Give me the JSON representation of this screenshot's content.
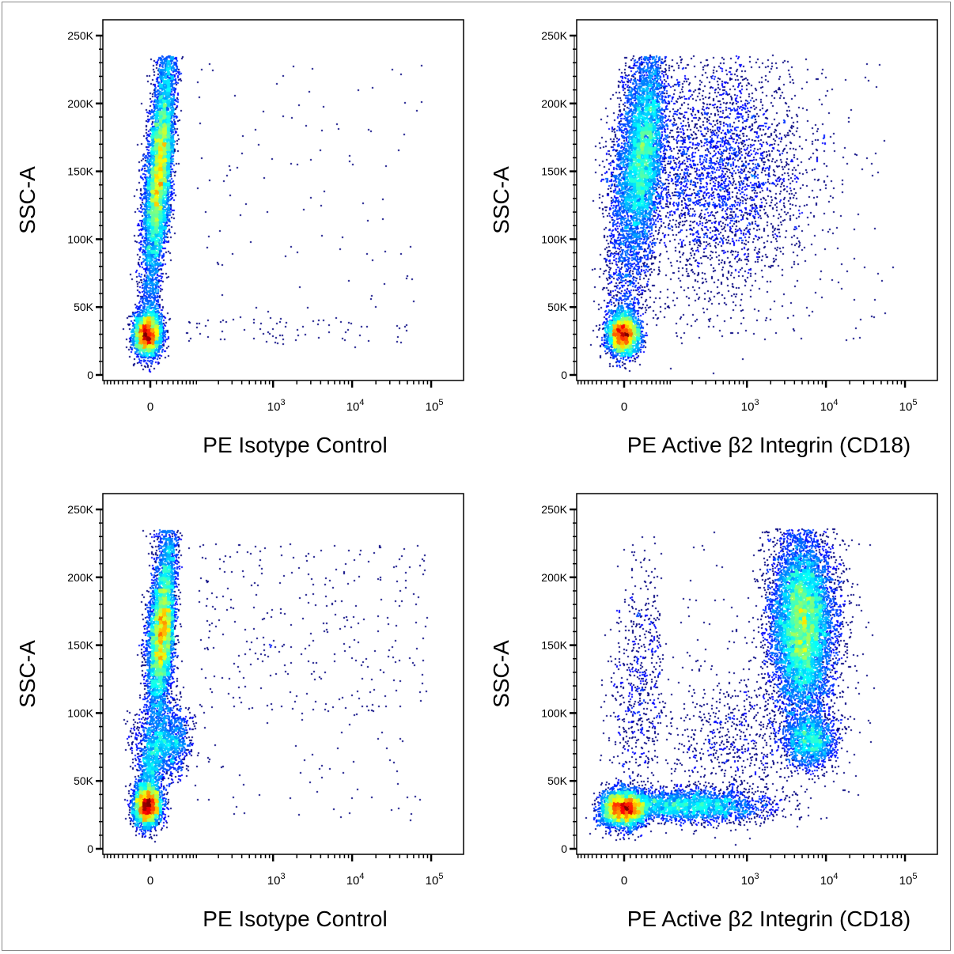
{
  "chart_data": [
    {
      "type": "scatter",
      "subtype": "flow-cytometry density dot plot",
      "xlabel": "PE Isotype Control",
      "ylabel": "SSC-A",
      "x_scale": "biexponential",
      "x_ticks": [
        "0",
        "10^3",
        "10^4",
        "10^5"
      ],
      "y_ticks": [
        "0",
        "50K",
        "100K",
        "150K",
        "200K",
        "250K"
      ],
      "ylim": [
        0,
        250000
      ],
      "color_scale": "density (blue-green-yellow-red)",
      "populations": [
        {
          "kind": "gauss",
          "x_mean": -5,
          "x_sd": 12,
          "y_mean": 30000,
          "y_sd": 8000,
          "n": 3000
        },
        {
          "kind": "column",
          "y_range": [
            40000,
            235000
          ],
          "y_peak": 150000,
          "x_mean_low": -5,
          "x_mean_high": 30,
          "x_sd": 11,
          "n": 7000
        },
        {
          "kind": "scatter",
          "x_range": [
            100,
            80000
          ],
          "y_range": [
            20000,
            230000
          ],
          "n": 110
        },
        {
          "kind": "scatter",
          "x_range": [
            60,
            50000
          ],
          "y_range": [
            22000,
            42000
          ],
          "n": 70
        }
      ]
    },
    {
      "type": "scatter",
      "subtype": "flow-cytometry density dot plot",
      "xlabel": "PE Active β2 Integrin (CD18)",
      "ylabel": "SSC-A",
      "x_scale": "biexponential",
      "x_ticks": [
        "0",
        "10^3",
        "10^4",
        "10^5"
      ],
      "y_ticks": [
        "0",
        "50K",
        "100K",
        "150K",
        "200K",
        "250K"
      ],
      "ylim": [
        0,
        250000
      ],
      "color_scale": "density (blue-green-yellow-red)",
      "populations": [
        {
          "kind": "gauss",
          "x_mean": -2,
          "x_sd": 14,
          "y_mean": 30000,
          "y_sd": 8000,
          "n": 3000
        },
        {
          "kind": "column",
          "y_range": [
            45000,
            235000
          ],
          "y_peak": 160000,
          "x_mean_low": 0,
          "x_mean_high": 45,
          "x_sd": 22,
          "n": 6000
        },
        {
          "kind": "logx",
          "x_log10_mean": 2.6,
          "x_log10_sd": 0.6,
          "y_mean": 150000,
          "y_sd": 45000,
          "n": 3500
        },
        {
          "kind": "scatter",
          "x_range": [
            100,
            60000
          ],
          "y_range": [
            25000,
            235000
          ],
          "n": 150
        }
      ]
    },
    {
      "type": "scatter",
      "subtype": "flow-cytometry density dot plot",
      "xlabel": "PE Isotype Control",
      "ylabel": "SSC-A",
      "x_scale": "biexponential",
      "x_ticks": [
        "0",
        "10^3",
        "10^4",
        "10^5"
      ],
      "y_ticks": [
        "0",
        "50K",
        "100K",
        "150K",
        "200K",
        "250K"
      ],
      "ylim": [
        0,
        250000
      ],
      "color_scale": "density (blue-green-yellow-red)",
      "populations": [
        {
          "kind": "gauss",
          "x_mean": -5,
          "x_sd": 12,
          "y_mean": 32000,
          "y_sd": 8000,
          "n": 3000
        },
        {
          "kind": "column",
          "y_range": [
            100000,
            235000
          ],
          "y_peak": 160000,
          "x_mean_low": 10,
          "x_mean_high": 30,
          "x_sd": 11,
          "n": 5500
        },
        {
          "kind": "gauss",
          "x_mean": 25,
          "x_sd": 25,
          "y_mean": 80000,
          "y_sd": 13000,
          "n": 1500
        },
        {
          "kind": "column",
          "y_range": [
            40000,
            100000
          ],
          "y_peak": 60000,
          "x_mean_low": -5,
          "x_mean_high": 10,
          "x_sd": 10,
          "n": 700
        },
        {
          "kind": "scatter",
          "x_range": [
            100,
            90000
          ],
          "y_range": [
            100000,
            225000
          ],
          "n": 320
        },
        {
          "kind": "scatter",
          "x_range": [
            100,
            90000
          ],
          "y_range": [
            20000,
            100000
          ],
          "n": 60
        }
      ]
    },
    {
      "type": "scatter",
      "subtype": "flow-cytometry density dot plot",
      "xlabel": "PE Active β2 Integrin (CD18)",
      "ylabel": "SSC-A",
      "x_scale": "biexponential",
      "x_ticks": [
        "0",
        "10^3",
        "10^4",
        "10^5"
      ],
      "y_ticks": [
        "0",
        "50K",
        "100K",
        "150K",
        "200K",
        "250K"
      ],
      "ylim": [
        0,
        250000
      ],
      "color_scale": "density (blue-green-yellow-red)",
      "populations": [
        {
          "kind": "gauss",
          "x_mean": -2,
          "x_sd": 20,
          "y_mean": 30000,
          "y_sd": 7000,
          "n": 3500
        },
        {
          "kind": "logx",
          "x_log10_mean": 2.3,
          "x_log10_sd": 0.5,
          "y_mean": 32000,
          "y_sd": 6000,
          "n": 2500
        },
        {
          "kind": "logx",
          "x_log10_mean": 3.7,
          "x_log10_sd": 0.2,
          "y_mean": 165000,
          "y_sd": 33000,
          "n": 9000
        },
        {
          "kind": "logx",
          "x_log10_mean": 3.8,
          "x_log10_sd": 0.17,
          "y_mean": 80000,
          "y_sd": 10000,
          "n": 1500
        },
        {
          "kind": "logx",
          "x_log10_mean": 2.8,
          "x_log10_sd": 0.5,
          "y_mean": 80000,
          "y_sd": 25000,
          "n": 700
        },
        {
          "kind": "column",
          "y_range": [
            45000,
            230000
          ],
          "y_peak": 120000,
          "x_mean_low": 10,
          "x_mean_high": 40,
          "x_sd": 25,
          "n": 600
        },
        {
          "kind": "scatter",
          "x_range": [
            100,
            40000
          ],
          "y_range": [
            40000,
            235000
          ],
          "n": 150
        }
      ]
    }
  ]
}
